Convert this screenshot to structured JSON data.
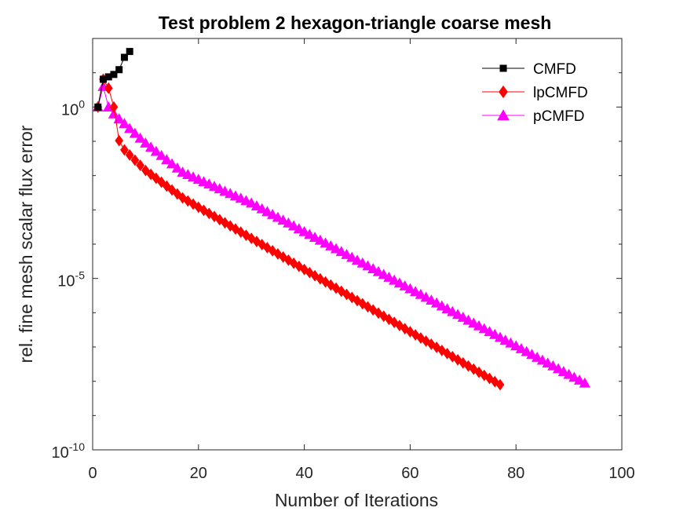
{
  "chart_data": {
    "type": "line",
    "title": "Test problem 2 hexagon-triangle coarse mesh",
    "xlabel": "Number of Iterations",
    "ylabel": "rel. fine mesh scalar flux error",
    "xlim": [
      0,
      100
    ],
    "ylim_exponent": [
      -10,
      2
    ],
    "yscale": "log",
    "x_ticks": [
      "0",
      "20",
      "40",
      "60",
      "80",
      "100"
    ],
    "y_ticks": [
      {
        "base": "10",
        "exp": "0",
        "value": 1
      },
      {
        "base": "10",
        "exp": "-5",
        "value": 1e-05
      },
      {
        "base": "10",
        "exp": "-10",
        "value": 1e-10
      }
    ],
    "legend_placement": "top-right",
    "series": [
      {
        "name": "CMFD",
        "color": "#000000",
        "marker": "square",
        "x": [
          1,
          2,
          3,
          4,
          5,
          6,
          7
        ],
        "log10_y": [
          0.0,
          0.81,
          0.88,
          0.95,
          1.09,
          1.45,
          1.62
        ]
      },
      {
        "name": "lpCMFD",
        "color": "#ff0000",
        "marker": "diamond",
        "x_start": 1,
        "x_end": 77,
        "log10_y_head": [
          0.0,
          0.81,
          0.55,
          0.0,
          -0.98,
          -1.25
        ],
        "log10_y_knots": [
          [
            6,
            -1.25
          ],
          [
            10,
            -1.85
          ],
          [
            17,
            -2.65
          ],
          [
            77,
            -8.1
          ]
        ]
      },
      {
        "name": "pCMFD",
        "color": "#ff00ff",
        "marker": "triangle",
        "x_start": 1,
        "x_end": 93,
        "log10_y_head": [
          0.0,
          0.6,
          0.0,
          -0.2
        ],
        "log10_y_knots": [
          [
            4,
            -0.2
          ],
          [
            10,
            -1.05
          ],
          [
            17,
            -1.9
          ],
          [
            30,
            -2.8
          ],
          [
            93,
            -8.05
          ]
        ]
      }
    ]
  }
}
